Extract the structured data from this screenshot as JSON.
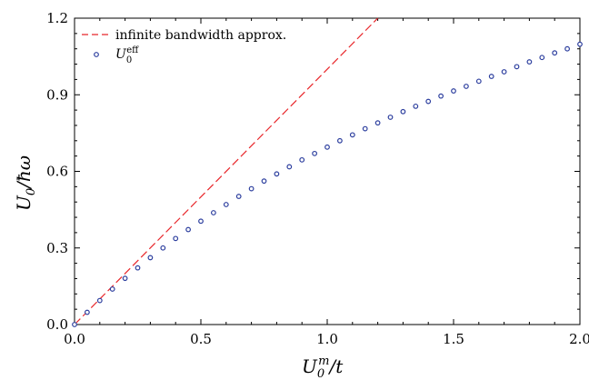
{
  "chart_data": {
    "type": "scatter",
    "title": "",
    "xlabel": "U_0^m/t",
    "ylabel": "U_0/ħω",
    "xlim": [
      0,
      2.0
    ],
    "ylim": [
      0,
      1.2
    ],
    "x_ticks": [
      "0.0",
      "0.5",
      "1.0",
      "1.5",
      "2.0"
    ],
    "y_ticks": [
      "0.0",
      "0.3",
      "0.6",
      "0.9",
      "1.2"
    ],
    "x_tick_values": [
      0,
      0.5,
      1.0,
      1.5,
      2.0
    ],
    "y_tick_values": [
      0,
      0.3,
      0.6,
      0.9,
      1.2
    ],
    "grid": false,
    "legend_position": "top-left",
    "series": [
      {
        "name": "infinite bandwidth approx.",
        "type": "line",
        "style": "dashed",
        "color": "#e8262a",
        "x": [
          0,
          1.2
        ],
        "y": [
          0,
          1.2
        ]
      },
      {
        "name": "U_0^eff",
        "type": "scatter",
        "marker": "open-circle",
        "color": "#2c3e9e",
        "x": [
          0.0,
          0.05,
          0.1,
          0.15,
          0.2,
          0.25,
          0.3,
          0.35,
          0.4,
          0.45,
          0.5,
          0.55,
          0.6,
          0.65,
          0.7,
          0.75,
          0.8,
          0.85,
          0.9,
          0.95,
          1.0,
          1.05,
          1.1,
          1.15,
          1.2,
          1.25,
          1.3,
          1.35,
          1.4,
          1.45,
          1.5,
          1.55,
          1.6,
          1.65,
          1.7,
          1.75,
          1.8,
          1.85,
          1.9,
          1.95,
          2.0
        ],
        "y": [
          0.0,
          0.048,
          0.094,
          0.139,
          0.181,
          0.222,
          0.262,
          0.3,
          0.337,
          0.372,
          0.405,
          0.438,
          0.47,
          0.502,
          0.532,
          0.562,
          0.59,
          0.618,
          0.645,
          0.67,
          0.695,
          0.72,
          0.743,
          0.767,
          0.79,
          0.812,
          0.834,
          0.855,
          0.874,
          0.895,
          0.915,
          0.933,
          0.953,
          0.972,
          0.99,
          1.01,
          1.029,
          1.046,
          1.064,
          1.08,
          1.098
        ]
      }
    ]
  }
}
